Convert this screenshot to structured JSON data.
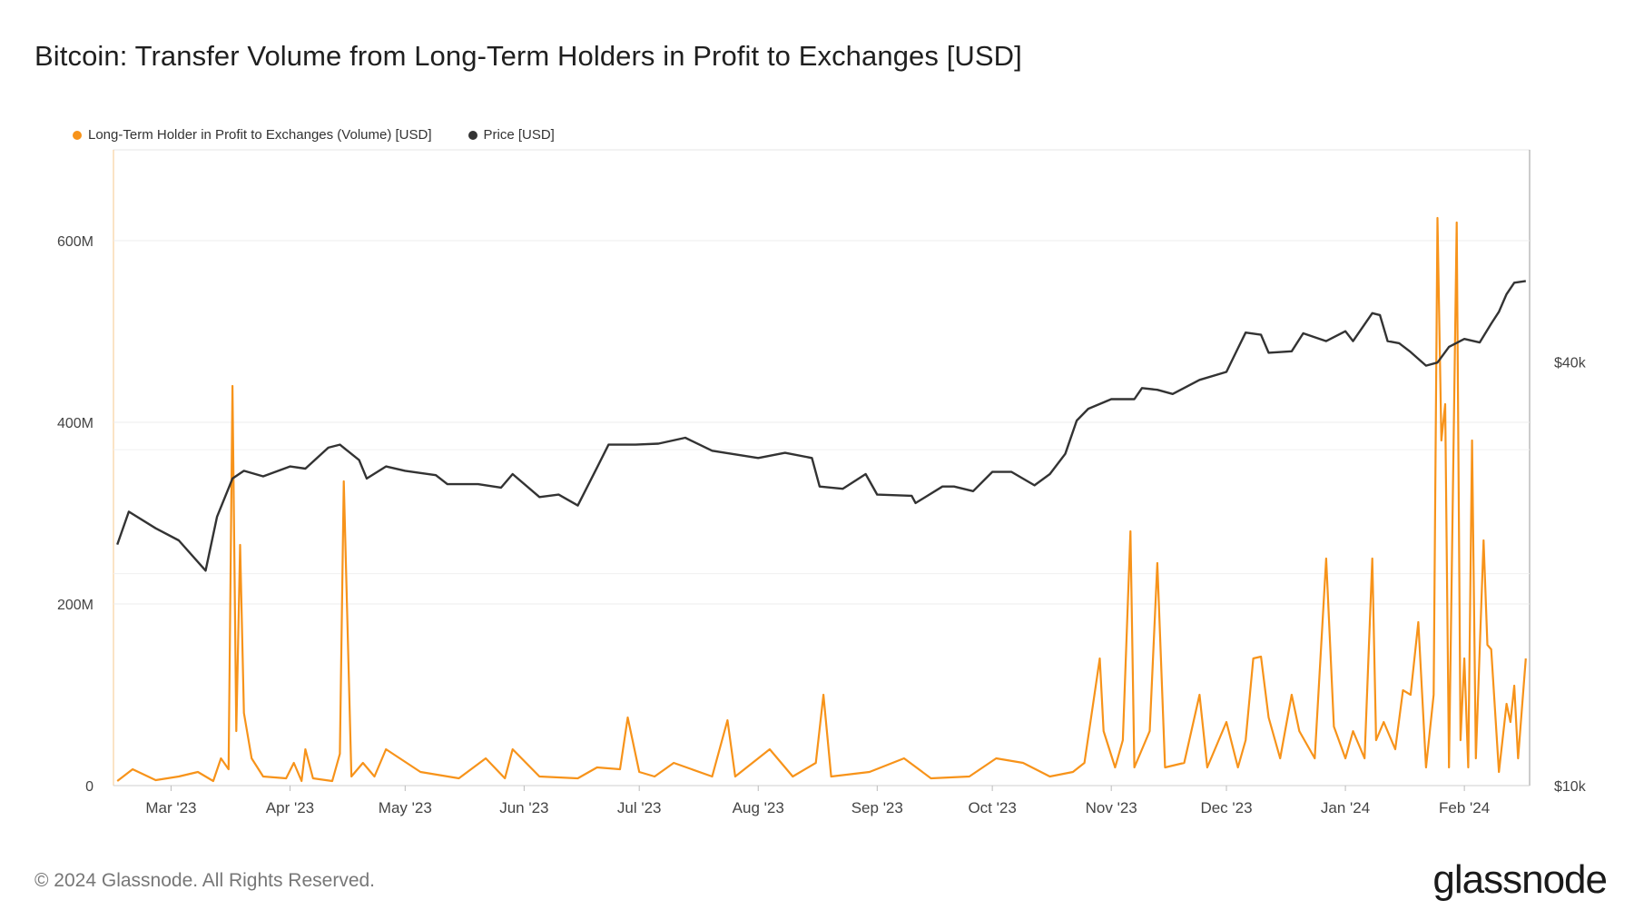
{
  "title": "Bitcoin: Transfer Volume from Long-Term Holders in Profit to Exchanges [USD]",
  "legend": [
    {
      "label": "Long-Term Holder in Profit to Exchanges (Volume) [USD]",
      "color": "#f7931a"
    },
    {
      "label": "Price [USD]",
      "color": "#333333"
    }
  ],
  "footer": "© 2024 Glassnode. All Rights Reserved.",
  "logo": "glassnode",
  "chart_data": {
    "type": "line",
    "x_ticks": [
      "Mar '23",
      "Apr '23",
      "May '23",
      "Jun '23",
      "Jul '23",
      "Aug '23",
      "Sep '23",
      "Oct '23",
      "Nov '23",
      "Dec '23",
      "Jan '24",
      "Feb '24"
    ],
    "y_left_ticks": [
      "0",
      "200M",
      "400M",
      "600M"
    ],
    "y_right_ticks": [
      "$10k",
      "$40k"
    ],
    "y_left_range": [
      0,
      700000000
    ],
    "y_right_scale": "log",
    "y_right_range": [
      10000,
      80000
    ],
    "grid": true,
    "legend_position": "top-left",
    "series": [
      {
        "name": "Long-Term Holder in Profit to Exchanges (Volume) [USD]",
        "axis": "left",
        "color": "#f7931a",
        "points": [
          [
            "2023-02-15",
            5000000
          ],
          [
            "2023-02-19",
            18000000
          ],
          [
            "2023-02-25",
            6000000
          ],
          [
            "2023-03-03",
            10000000
          ],
          [
            "2023-03-08",
            15000000
          ],
          [
            "2023-03-12",
            5000000
          ],
          [
            "2023-03-14",
            30000000
          ],
          [
            "2023-03-16",
            18000000
          ],
          [
            "2023-03-17",
            440000000
          ],
          [
            "2023-03-18",
            60000000
          ],
          [
            "2023-03-19",
            265000000
          ],
          [
            "2023-03-20",
            80000000
          ],
          [
            "2023-03-22",
            30000000
          ],
          [
            "2023-03-25",
            10000000
          ],
          [
            "2023-03-31",
            8000000
          ],
          [
            "2023-04-02",
            25000000
          ],
          [
            "2023-04-04",
            5000000
          ],
          [
            "2023-04-05",
            40000000
          ],
          [
            "2023-04-07",
            8000000
          ],
          [
            "2023-04-12",
            5000000
          ],
          [
            "2023-04-14",
            35000000
          ],
          [
            "2023-04-15",
            335000000
          ],
          [
            "2023-04-17",
            10000000
          ],
          [
            "2023-04-20",
            25000000
          ],
          [
            "2023-04-23",
            10000000
          ],
          [
            "2023-04-26",
            40000000
          ],
          [
            "2023-05-05",
            15000000
          ],
          [
            "2023-05-15",
            8000000
          ],
          [
            "2023-05-22",
            30000000
          ],
          [
            "2023-05-27",
            8000000
          ],
          [
            "2023-05-29",
            40000000
          ],
          [
            "2023-06-05",
            10000000
          ],
          [
            "2023-06-15",
            8000000
          ],
          [
            "2023-06-20",
            20000000
          ],
          [
            "2023-06-26",
            18000000
          ],
          [
            "2023-06-28",
            75000000
          ],
          [
            "2023-07-01",
            15000000
          ],
          [
            "2023-07-05",
            10000000
          ],
          [
            "2023-07-10",
            25000000
          ],
          [
            "2023-07-20",
            10000000
          ],
          [
            "2023-07-24",
            72000000
          ],
          [
            "2023-07-26",
            10000000
          ],
          [
            "2023-08-04",
            40000000
          ],
          [
            "2023-08-10",
            10000000
          ],
          [
            "2023-08-16",
            25000000
          ],
          [
            "2023-08-18",
            100000000
          ],
          [
            "2023-08-20",
            10000000
          ],
          [
            "2023-08-30",
            15000000
          ],
          [
            "2023-09-08",
            30000000
          ],
          [
            "2023-09-15",
            8000000
          ],
          [
            "2023-09-25",
            10000000
          ],
          [
            "2023-10-02",
            30000000
          ],
          [
            "2023-10-09",
            25000000
          ],
          [
            "2023-10-16",
            10000000
          ],
          [
            "2023-10-22",
            15000000
          ],
          [
            "2023-10-25",
            25000000
          ],
          [
            "2023-10-29",
            140000000
          ],
          [
            "2023-10-30",
            60000000
          ],
          [
            "2023-11-02",
            20000000
          ],
          [
            "2023-11-04",
            50000000
          ],
          [
            "2023-11-06",
            280000000
          ],
          [
            "2023-11-07",
            20000000
          ],
          [
            "2023-11-11",
            60000000
          ],
          [
            "2023-11-13",
            245000000
          ],
          [
            "2023-11-15",
            20000000
          ],
          [
            "2023-11-20",
            25000000
          ],
          [
            "2023-11-24",
            100000000
          ],
          [
            "2023-11-26",
            20000000
          ],
          [
            "2023-12-01",
            70000000
          ],
          [
            "2023-12-04",
            20000000
          ],
          [
            "2023-12-06",
            50000000
          ],
          [
            "2023-12-08",
            140000000
          ],
          [
            "2023-12-10",
            142000000
          ],
          [
            "2023-12-12",
            75000000
          ],
          [
            "2023-12-15",
            30000000
          ],
          [
            "2023-12-18",
            100000000
          ],
          [
            "2023-12-20",
            60000000
          ],
          [
            "2023-12-24",
            30000000
          ],
          [
            "2023-12-27",
            250000000
          ],
          [
            "2023-12-29",
            65000000
          ],
          [
            "2024-01-01",
            30000000
          ],
          [
            "2024-01-03",
            60000000
          ],
          [
            "2024-01-06",
            30000000
          ],
          [
            "2024-01-08",
            250000000
          ],
          [
            "2024-01-09",
            50000000
          ],
          [
            "2024-01-11",
            70000000
          ],
          [
            "2024-01-14",
            40000000
          ],
          [
            "2024-01-16",
            105000000
          ],
          [
            "2024-01-18",
            100000000
          ],
          [
            "2024-01-20",
            180000000
          ],
          [
            "2024-01-22",
            20000000
          ],
          [
            "2024-01-24",
            100000000
          ],
          [
            "2024-01-25",
            625000000
          ],
          [
            "2024-01-26",
            380000000
          ],
          [
            "2024-01-27",
            420000000
          ],
          [
            "2024-01-28",
            20000000
          ],
          [
            "2024-01-30",
            620000000
          ],
          [
            "2024-01-31",
            50000000
          ],
          [
            "2024-02-01",
            140000000
          ],
          [
            "2024-02-02",
            20000000
          ],
          [
            "2024-02-03",
            380000000
          ],
          [
            "2024-02-04",
            30000000
          ],
          [
            "2024-02-06",
            270000000
          ],
          [
            "2024-02-07",
            155000000
          ],
          [
            "2024-02-08",
            150000000
          ],
          [
            "2024-02-10",
            15000000
          ],
          [
            "2024-02-12",
            90000000
          ],
          [
            "2024-02-13",
            70000000
          ],
          [
            "2024-02-14",
            110000000
          ],
          [
            "2024-02-15",
            30000000
          ],
          [
            "2024-02-17",
            140000000
          ]
        ]
      },
      {
        "name": "Price [USD]",
        "axis": "right",
        "color": "#333333",
        "points": [
          [
            "2023-02-15",
            22000
          ],
          [
            "2023-02-18",
            24500
          ],
          [
            "2023-02-25",
            23200
          ],
          [
            "2023-03-03",
            22300
          ],
          [
            "2023-03-10",
            20200
          ],
          [
            "2023-03-13",
            24100
          ],
          [
            "2023-03-17",
            27300
          ],
          [
            "2023-03-20",
            28000
          ],
          [
            "2023-03-25",
            27500
          ],
          [
            "2023-04-01",
            28400
          ],
          [
            "2023-04-05",
            28200
          ],
          [
            "2023-04-11",
            30200
          ],
          [
            "2023-04-14",
            30500
          ],
          [
            "2023-04-19",
            29000
          ],
          [
            "2023-04-21",
            27300
          ],
          [
            "2023-04-26",
            28400
          ],
          [
            "2023-05-01",
            28000
          ],
          [
            "2023-05-09",
            27600
          ],
          [
            "2023-05-12",
            26800
          ],
          [
            "2023-05-20",
            26800
          ],
          [
            "2023-05-26",
            26500
          ],
          [
            "2023-05-29",
            27700
          ],
          [
            "2023-06-05",
            25700
          ],
          [
            "2023-06-10",
            25900
          ],
          [
            "2023-06-15",
            25000
          ],
          [
            "2023-06-20",
            28300
          ],
          [
            "2023-06-23",
            30500
          ],
          [
            "2023-06-30",
            30500
          ],
          [
            "2023-07-06",
            30600
          ],
          [
            "2023-07-13",
            31200
          ],
          [
            "2023-07-20",
            29900
          ],
          [
            "2023-08-01",
            29200
          ],
          [
            "2023-08-08",
            29700
          ],
          [
            "2023-08-15",
            29200
          ],
          [
            "2023-08-17",
            26600
          ],
          [
            "2023-08-23",
            26400
          ],
          [
            "2023-08-29",
            27700
          ],
          [
            "2023-09-01",
            25900
          ],
          [
            "2023-09-10",
            25800
          ],
          [
            "2023-09-11",
            25200
          ],
          [
            "2023-09-18",
            26600
          ],
          [
            "2023-09-21",
            26600
          ],
          [
            "2023-09-26",
            26200
          ],
          [
            "2023-10-01",
            27900
          ],
          [
            "2023-10-06",
            27900
          ],
          [
            "2023-10-12",
            26700
          ],
          [
            "2023-10-16",
            27700
          ],
          [
            "2023-10-20",
            29600
          ],
          [
            "2023-10-23",
            33000
          ],
          [
            "2023-10-26",
            34300
          ],
          [
            "2023-11-01",
            35400
          ],
          [
            "2023-11-07",
            35400
          ],
          [
            "2023-11-09",
            36700
          ],
          [
            "2023-11-13",
            36500
          ],
          [
            "2023-11-17",
            36000
          ],
          [
            "2023-11-24",
            37700
          ],
          [
            "2023-12-01",
            38700
          ],
          [
            "2023-12-04",
            41800
          ],
          [
            "2023-12-06",
            44000
          ],
          [
            "2023-12-10",
            43700
          ],
          [
            "2023-12-12",
            41200
          ],
          [
            "2023-12-18",
            41400
          ],
          [
            "2023-12-21",
            43900
          ],
          [
            "2023-12-27",
            42800
          ],
          [
            "2024-01-01",
            44200
          ],
          [
            "2024-01-03",
            42800
          ],
          [
            "2024-01-08",
            46900
          ],
          [
            "2024-01-10",
            46600
          ],
          [
            "2024-01-12",
            42800
          ],
          [
            "2024-01-15",
            42500
          ],
          [
            "2024-01-18",
            41300
          ],
          [
            "2024-01-22",
            39500
          ],
          [
            "2024-01-25",
            39900
          ],
          [
            "2024-01-28",
            42000
          ],
          [
            "2024-02-01",
            43100
          ],
          [
            "2024-02-05",
            42600
          ],
          [
            "2024-02-08",
            45300
          ],
          [
            "2024-02-10",
            47100
          ],
          [
            "2024-02-12",
            49900
          ],
          [
            "2024-02-14",
            51800
          ],
          [
            "2024-02-17",
            52100
          ]
        ]
      }
    ]
  }
}
